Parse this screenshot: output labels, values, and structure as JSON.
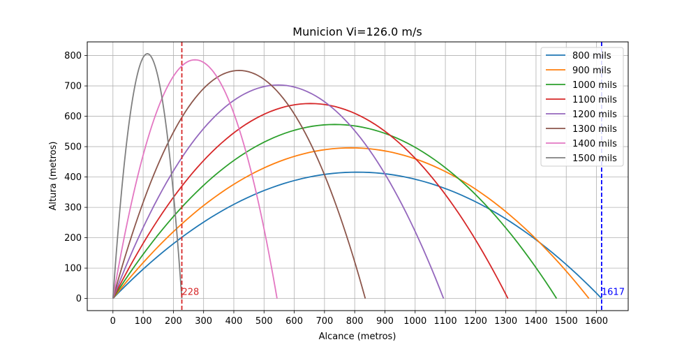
{
  "chart_data": {
    "type": "line",
    "title": "Municion Vi=126.0 m/s",
    "xlabel": "Alcance (metros)",
    "ylabel": "Altura (metros)",
    "xlim": [
      -85,
      1705
    ],
    "ylim": [
      -40,
      845
    ],
    "xticks": [
      0,
      100,
      200,
      300,
      400,
      500,
      600,
      700,
      800,
      900,
      1000,
      1100,
      1200,
      1300,
      1400,
      1500,
      1600
    ],
    "yticks": [
      0,
      100,
      200,
      300,
      400,
      500,
      600,
      700,
      800
    ],
    "grid": true,
    "legend_position": "top-right",
    "series": [
      {
        "name": "800 mils",
        "color": "#1f77b4",
        "range": 1617,
        "apex_height": 416
      },
      {
        "name": "900 mils",
        "color": "#ff7f0e",
        "range": 1575,
        "apex_height": 496
      },
      {
        "name": "1000 mils",
        "color": "#2ca02c",
        "range": 1468,
        "apex_height": 573
      },
      {
        "name": "1100 mils",
        "color": "#d62728",
        "range": 1307,
        "apex_height": 642
      },
      {
        "name": "1200 mils",
        "color": "#9467bd",
        "range": 1094,
        "apex_height": 703
      },
      {
        "name": "1300 mils",
        "color": "#8c564b",
        "range": 835,
        "apex_height": 751
      },
      {
        "name": "1400 mils",
        "color": "#e377c2",
        "range": 543,
        "apex_height": 786
      },
      {
        "name": "1500 mils",
        "color": "#7f7f7f",
        "range": 228,
        "apex_height": 806
      }
    ],
    "vlines": [
      {
        "x": 228,
        "color": "#d62728",
        "label": "228"
      },
      {
        "x": 1617,
        "color": "#0000ff",
        "label": "1617"
      }
    ]
  }
}
